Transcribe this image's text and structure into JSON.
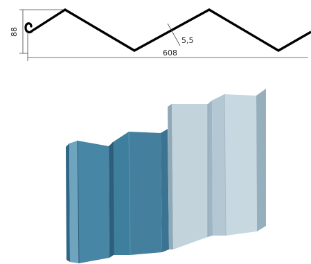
{
  "profile_drawing": {
    "height_label": "88",
    "thickness_label": "5,5",
    "width_label": "608"
  },
  "colors": {
    "profile_line": "#000000",
    "dimension_line": "#444444",
    "dark_panel": "#3f7f9e",
    "light_panel": "#bccfd9"
  }
}
